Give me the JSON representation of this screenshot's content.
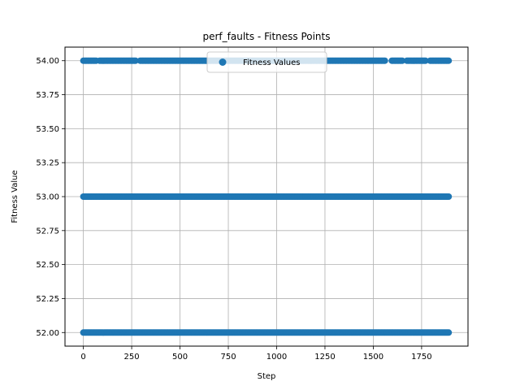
{
  "chart_data": {
    "type": "scatter",
    "title": "perf_faults - Fitness Points",
    "xlabel": "Step",
    "ylabel": "Fitness Value",
    "xlim": [
      -95,
      1990
    ],
    "ylim": [
      51.9,
      54.1
    ],
    "xticks": [
      0,
      250,
      500,
      750,
      1000,
      1250,
      1500,
      1750
    ],
    "yticks": [
      52.0,
      52.25,
      52.5,
      52.75,
      53.0,
      53.25,
      53.5,
      53.75,
      54.0
    ],
    "grid": true,
    "legend_position": "top-center",
    "series": [
      {
        "name": "Fitness Values",
        "color": "#1f77b4",
        "x_range": [
          0,
          1890
        ],
        "levels": [
          52.0,
          53.0,
          54.0
        ],
        "gaps": {
          "54.0": [
            [
              67,
              80
            ],
            [
              275,
              290
            ],
            [
              1565,
              1590
            ],
            [
              1655,
              1670
            ],
            [
              1775,
              1790
            ]
          ],
          "53.0": [],
          "52.0": []
        }
      }
    ]
  }
}
